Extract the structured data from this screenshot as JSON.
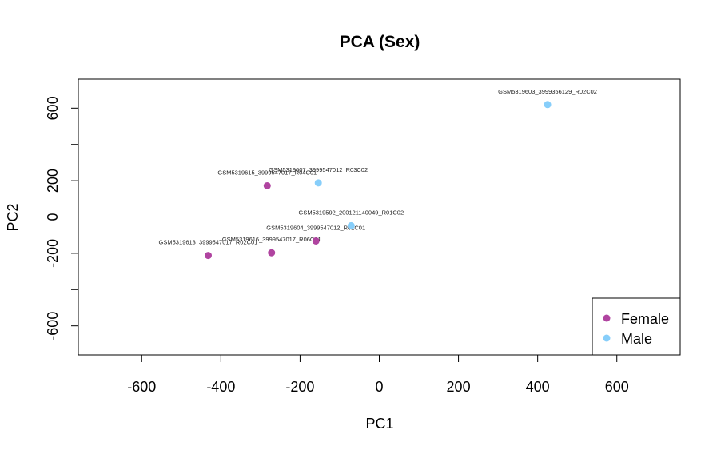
{
  "chart_data": {
    "type": "scatter",
    "title": "PCA (Sex)",
    "xlabel": "PC1",
    "ylabel": "PC2",
    "xlim": [
      -760,
      760
    ],
    "ylim": [
      -760,
      760
    ],
    "xticks": [
      -600,
      -400,
      -200,
      0,
      200,
      400,
      600
    ],
    "yticks": [
      -600,
      -400,
      -200,
      0,
      200,
      400,
      600
    ],
    "ytick_labels": [
      "-600",
      "",
      "-200",
      "0",
      "200",
      "",
      "600"
    ],
    "grid": false,
    "legend": {
      "placement": "bottom-right",
      "entries": [
        {
          "name": "Female",
          "color": "#b044a0"
        },
        {
          "name": "Male",
          "color": "#87cefa"
        }
      ]
    },
    "series": [
      {
        "name": "Female",
        "color": "#b044a0",
        "points": [
          {
            "x": -283,
            "y": 172,
            "label": "GSM5319615_3999547017_R04C01"
          },
          {
            "x": -272,
            "y": -197,
            "label": "GSM5319616_3999547017_R06C01"
          },
          {
            "x": -432,
            "y": -212,
            "label": "GSM5319613_3999547017_R02C01"
          },
          {
            "x": -160,
            "y": -132,
            "label": "GSM5319604_3999547012_R02C01"
          }
        ]
      },
      {
        "name": "Male",
        "color": "#87cefa",
        "points": [
          {
            "x": 425,
            "y": 620,
            "label": "GSM5319603_3999356129_R02C02"
          },
          {
            "x": -154,
            "y": 188,
            "label": "GSM5319607_3999547012_R03C02"
          },
          {
            "x": -71,
            "y": -48,
            "label": "GSM5319592_200121140049_R01C02"
          }
        ]
      }
    ]
  }
}
